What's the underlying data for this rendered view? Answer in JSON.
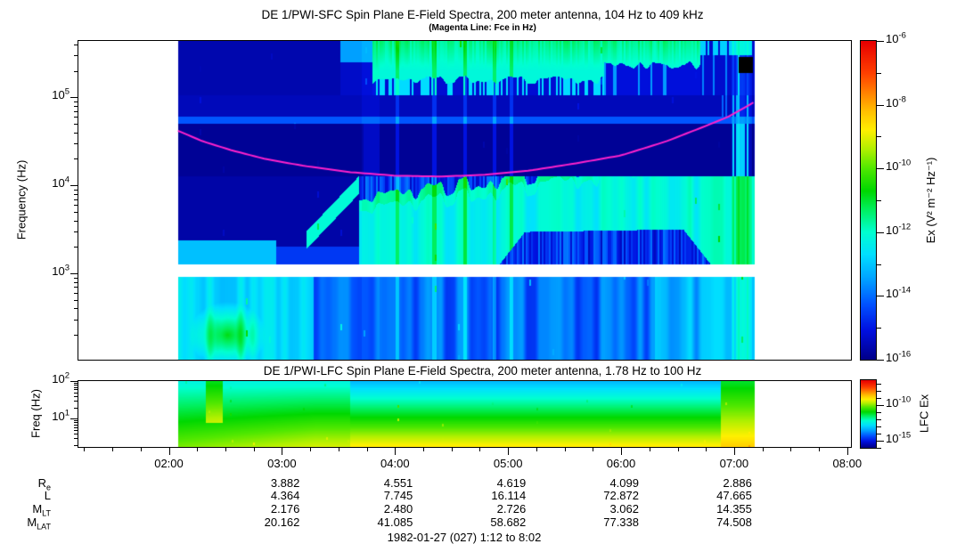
{
  "chart_data": {
    "type": "heatmap",
    "description": "Two-panel satellite plasma-wave spectrogram (frequency vs time, color = spectral power density, rainbow colormap)",
    "time_axis": {
      "start_hour": 1.2,
      "end_hour": 8.033,
      "data_start_hour": 2.08,
      "data_end_hour": 7.18,
      "tick_hours": [
        2,
        3,
        4,
        5,
        6,
        7,
        8
      ],
      "tick_labels": [
        "02:00",
        "03:00",
        "04:00",
        "05:00",
        "06:00",
        "07:00",
        "08:00"
      ],
      "minor_tick_interval_hours": 0.25
    },
    "panels": [
      {
        "id": "sfc",
        "title": "DE 1/PWI-SFC  Spin Plane E-Field Spectra, 200 meter antenna, 104 Hz to 409 kHz",
        "subtitle": "(Magenta Line: Fce in Hz)",
        "ylabel": "Frequency (Hz)",
        "freq_hz_range": [
          104,
          409000
        ],
        "y_log_range": [
          2.02,
          5.64
        ],
        "y_tick_exponents": [
          2,
          3,
          4,
          5
        ],
        "no_data_gap_log_hz": [
          2.96,
          3.1
        ],
        "colorbar": {
          "label": "Ex (V² m⁻² Hz⁻¹)",
          "log_range": [
            -16,
            -6
          ],
          "tick_exponents": [
            -6,
            -8,
            -10,
            -12,
            -14,
            -16
          ]
        },
        "fce_line": {
          "label": "Fce in Hz",
          "color": "#ff22cc",
          "points_hour_log10hz": [
            [
              2.08,
              4.62
            ],
            [
              2.3,
              4.5
            ],
            [
              2.55,
              4.4
            ],
            [
              2.85,
              4.3
            ],
            [
              3.2,
              4.22
            ],
            [
              3.6,
              4.15
            ],
            [
              4.0,
              4.11
            ],
            [
              4.4,
              4.1
            ],
            [
              4.8,
              4.12
            ],
            [
              5.2,
              4.17
            ],
            [
              5.6,
              4.25
            ],
            [
              6.0,
              4.34
            ],
            [
              6.4,
              4.5
            ],
            [
              6.72,
              4.66
            ],
            [
              6.95,
              4.78
            ],
            [
              7.17,
              4.94
            ]
          ]
        }
      },
      {
        "id": "lfc",
        "title": "DE 1/PWI-LFC  Spin Plane E-Field Spectra, 200 meter antenna, 1.78 Hz to 100 Hz",
        "ylabel": "Freq (Hz)",
        "freq_hz_range": [
          1.78,
          100
        ],
        "y_log_range": [
          0.25,
          2.0
        ],
        "y_tick_exponents": [
          1,
          2
        ],
        "colorbar": {
          "label": "LFC Ex",
          "log_range": [
            -16,
            -6.5
          ],
          "tick_exponents": [
            -10,
            -15
          ]
        }
      }
    ],
    "colormap_stops": [
      [
        0.0,
        "#00008a"
      ],
      [
        0.09,
        "#0010e0"
      ],
      [
        0.17,
        "#0050ff"
      ],
      [
        0.25,
        "#00a0ff"
      ],
      [
        0.33,
        "#00e0ff"
      ],
      [
        0.4,
        "#00ffd0"
      ],
      [
        0.47,
        "#00f060"
      ],
      [
        0.53,
        "#00d800"
      ],
      [
        0.6,
        "#50e800"
      ],
      [
        0.66,
        "#b0f000"
      ],
      [
        0.72,
        "#fff000"
      ],
      [
        0.78,
        "#ffc000"
      ],
      [
        0.84,
        "#ff8000"
      ],
      [
        0.9,
        "#ff4000"
      ],
      [
        1.0,
        "#e80000"
      ]
    ],
    "features": {
      "sfc": {
        "gap_log": [
          2.96,
          3.1
        ],
        "quiet_band_log": [
          4.1,
          4.7
        ],
        "separator_log": [
          4.7,
          4.78
        ],
        "top_band_log": 5.02,
        "green_band_top": [
          [
            3.68,
            3.9
          ],
          [
            4.2,
            3.93
          ],
          [
            6.55,
            4.36
          ],
          [
            7.18,
            4.36
          ]
        ],
        "green_band_bottom": [
          [
            3.68,
            3.11
          ],
          [
            4.9,
            3.11
          ],
          [
            5.15,
            3.52
          ],
          [
            6.55,
            3.55
          ],
          [
            6.82,
            3.11
          ],
          [
            7.18,
            3.11
          ]
        ],
        "disturbance_hours": [
          3.72,
          3.86
        ],
        "bright_stripe_hours": [
          4.02,
          4.35,
          4.62,
          4.88,
          5.03
        ],
        "end_bright_hour": 6.98,
        "arc_points": [
          [
            2.1,
            5.43
          ],
          [
            2.6,
            5.34
          ],
          [
            3.1,
            5.22
          ],
          [
            3.45,
            5.08
          ],
          [
            3.7,
            4.85
          ],
          [
            3.85,
            4.62
          ],
          [
            3.93,
            4.44
          ]
        ],
        "streak": {
          "t0": 3.22,
          "t1": 3.72,
          "base_lf": 3.38,
          "slope": 1.35
        },
        "blob": {
          "t": 2.52,
          "lf": 2.3
        }
      },
      "lfc": {
        "left_end_hour": 3.63,
        "right_start_hour": 6.88,
        "yellow_stripe_hours": [
          2.33,
          2.48
        ],
        "disturbance_hours": [
          3.65,
          4.05
        ]
      }
    },
    "ephemeris": {
      "row_labels": [
        {
          "text": "R",
          "sub": "e"
        },
        {
          "text": "L",
          "sub": ""
        },
        {
          "text": "M",
          "sub": "LT"
        },
        {
          "text": "M",
          "sub": "LAT"
        }
      ],
      "value_hours": [
        3,
        4,
        5,
        6,
        7
      ],
      "values": [
        [
          "3.882",
          "4.551",
          "4.619",
          "4.099",
          "2.886"
        ],
        [
          "4.364",
          "7.745",
          "16.114",
          "72.872",
          "47.665"
        ],
        [
          "2.176",
          "2.480",
          "2.726",
          "3.062",
          "14.355"
        ],
        [
          "20.162",
          "41.085",
          "58.682",
          "77.338",
          "74.508"
        ]
      ]
    },
    "footer": "1982-01-27 (027) 1:12 to 8:02"
  }
}
